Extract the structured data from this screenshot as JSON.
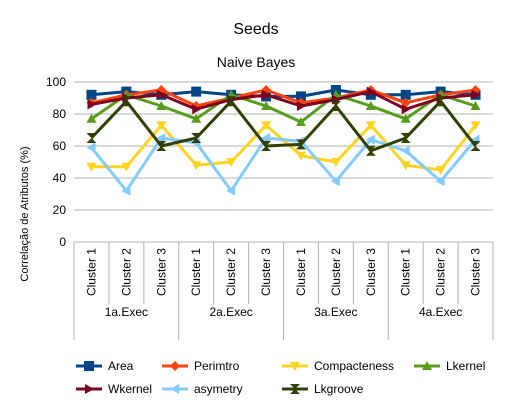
{
  "chart_data": {
    "type": "line",
    "title": "Seeds",
    "subtitle": "Naive Bayes",
    "ylabel": "Correlação de Atributos (%)",
    "xlabel": "",
    "ylim": [
      0,
      100
    ],
    "yticks": [
      0,
      20,
      40,
      60,
      80,
      100
    ],
    "grid": "y-major",
    "legend_position": "bottom",
    "categories": [
      "Cluster 1",
      "Cluster 2",
      "Cluster 3",
      "Cluster 1",
      "Cluster 2",
      "Cluster 3",
      "Cluster 1",
      "Cluster 2",
      "Cluster 3",
      "Cluster 1",
      "Cluster 2",
      "Cluster 3"
    ],
    "groups": [
      "1a.Exec",
      "2a.Exec",
      "3a.Exec",
      "4a.Exec"
    ],
    "series": [
      {
        "name": "Area",
        "color": "#004586",
        "marker": "square",
        "values": [
          92,
          94,
          92,
          94,
          92,
          91,
          91,
          95,
          92,
          92,
          94,
          92
        ]
      },
      {
        "name": "Perimtro",
        "color": "#ff420e",
        "marker": "diamond",
        "values": [
          87,
          92,
          95,
          85,
          90,
          95,
          87,
          90,
          95,
          87,
          92,
          95
        ]
      },
      {
        "name": "Compacteness",
        "color": "#ffd320",
        "marker": "triangle-down",
        "values": [
          47,
          47,
          73,
          48,
          50,
          73,
          54,
          50,
          73,
          48,
          45,
          73
        ]
      },
      {
        "name": "Lkernel",
        "color": "#579d1c",
        "marker": "triangle-up",
        "values": [
          77,
          92,
          85,
          77,
          92,
          85,
          75,
          92,
          85,
          77,
          92,
          85
        ]
      },
      {
        "name": "Wkernel",
        "color": "#7e0021",
        "marker": "triangle-right",
        "values": [
          86,
          90,
          92,
          83,
          89,
          92,
          85,
          89,
          94,
          83,
          90,
          92
        ]
      },
      {
        "name": "asymetry",
        "color": "#83caff",
        "marker": "triangle-left",
        "values": [
          59,
          32,
          65,
          62,
          32,
          65,
          63,
          38,
          64,
          57,
          38,
          64
        ]
      },
      {
        "name": "Lkgroove",
        "color": "#314004",
        "marker": "x",
        "values": [
          65,
          88,
          60,
          65,
          88,
          60,
          61,
          85,
          57,
          65,
          88,
          60
        ]
      }
    ]
  }
}
